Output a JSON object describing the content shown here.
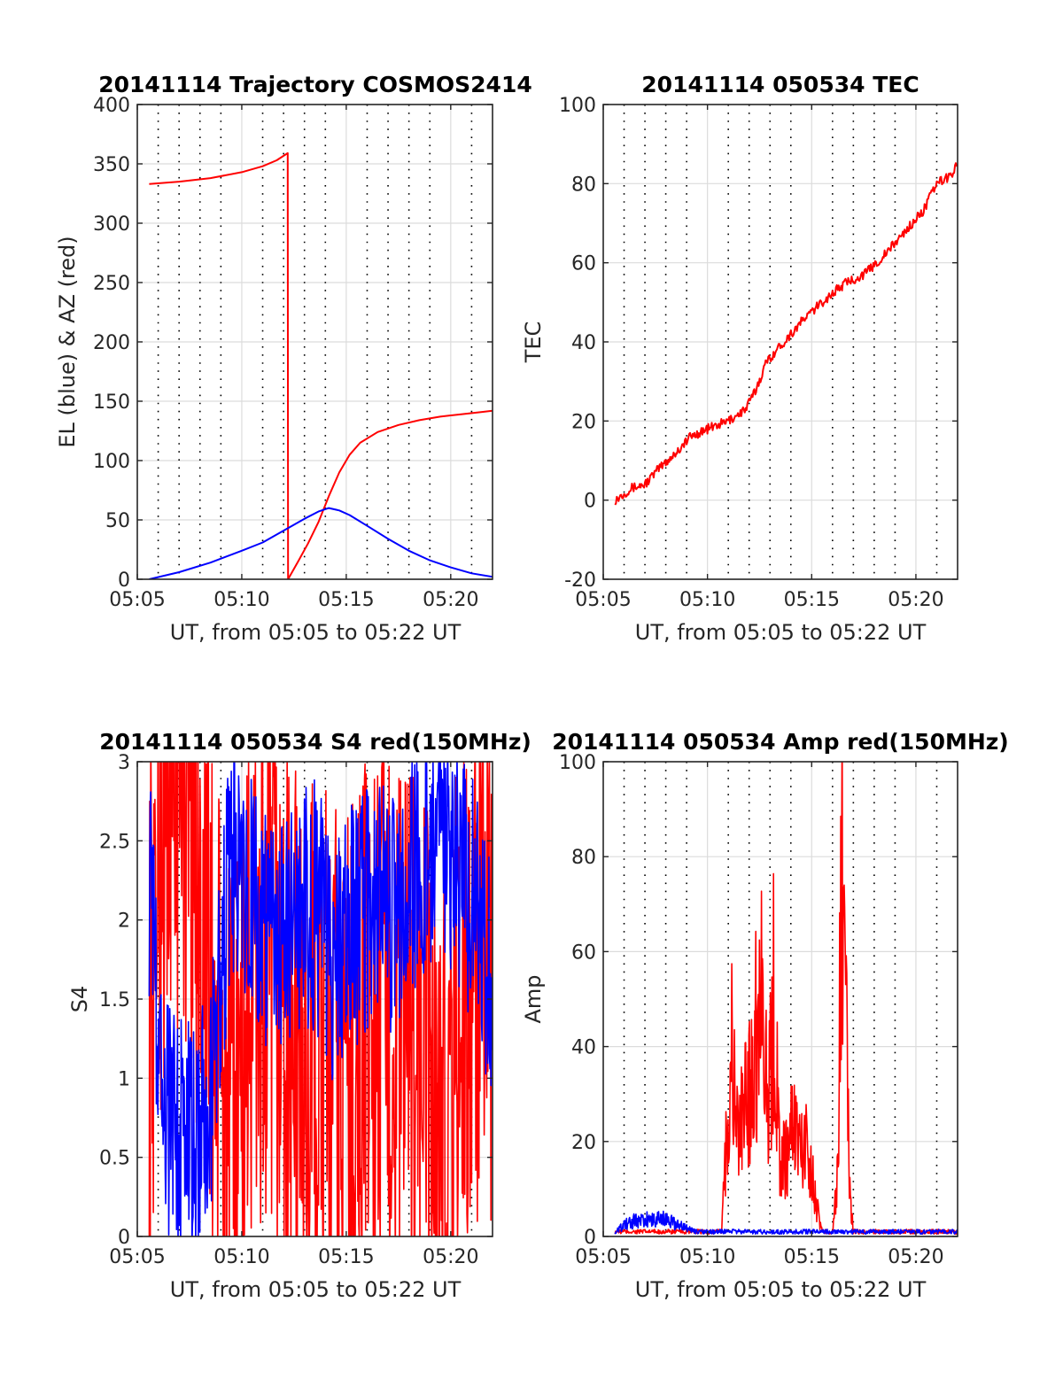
{
  "chart_data": [
    {
      "type": "line",
      "title": "20141114 Trajectory COSMOS2414",
      "xlabel": "UT, from 05:05 to 05:22 UT",
      "ylabel": "EL (blue) & AZ (red)",
      "xlim": [
        "05:05",
        "05:22"
      ],
      "ylim": [
        0,
        400
      ],
      "xticks": [
        "05:05",
        "05:10",
        "05:15",
        "05:20"
      ],
      "yticks": [
        "0",
        "50",
        "100",
        "150",
        "200",
        "250",
        "300",
        "350",
        "400"
      ],
      "grid": true,
      "series": [
        {
          "color": "#ff0000",
          "x": [
            "05:05:34",
            "05:07:00",
            "05:08:30",
            "05:10:00",
            "05:11:00",
            "05:11:40",
            "05:12:12",
            "05:12:13",
            "05:12:40",
            "05:13:10",
            "05:13:40",
            "05:14:10",
            "05:14:40",
            "05:15:10",
            "05:15:40",
            "05:16:30",
            "05:17:30",
            "05:18:30",
            "05:19:30",
            "05:20:30",
            "05:21:30",
            "05:22:00"
          ],
          "values": [
            333,
            335,
            338,
            343,
            348,
            353,
            359,
            0,
            14,
            30,
            48,
            70,
            90,
            105,
            115,
            124,
            130,
            134,
            137,
            139,
            141,
            142
          ]
        },
        {
          "color": "#0000ff",
          "x": [
            "05:05:34",
            "05:07:00",
            "05:08:30",
            "05:10:00",
            "05:11:00",
            "05:12:00",
            "05:13:00",
            "05:13:40",
            "05:14:10",
            "05:14:40",
            "05:15:10",
            "05:16:00",
            "05:17:00",
            "05:18:00",
            "05:19:00",
            "05:20:00",
            "05:21:00",
            "05:22:00"
          ],
          "values": [
            0,
            6,
            14,
            24,
            31,
            41,
            51,
            57,
            60,
            58,
            54,
            45,
            34,
            24,
            16,
            10,
            5,
            2
          ]
        }
      ]
    },
    {
      "type": "line",
      "title": "20141114 050534 TEC",
      "xlabel": "UT, from 05:05 to 05:22 UT",
      "ylabel": "TEC",
      "xlim": [
        "05:05",
        "05:22"
      ],
      "ylim": [
        -20,
        100
      ],
      "xticks": [
        "05:05",
        "05:10",
        "05:15",
        "05:20"
      ],
      "yticks": [
        "-20",
        "0",
        "20",
        "40",
        "60",
        "80",
        "100"
      ],
      "grid": true,
      "series": [
        {
          "color": "#ff0000",
          "x": [
            "05:05:34",
            "05:06:20",
            "05:07:00",
            "05:07:40",
            "05:08:30",
            "05:09:10",
            "05:10:00",
            "05:11:00",
            "05:11:50",
            "05:12:20",
            "05:12:50",
            "05:13:30",
            "05:14:00",
            "05:14:40",
            "05:15:30",
            "05:16:10",
            "05:16:40",
            "05:17:30",
            "05:18:20",
            "05:19:20",
            "05:20:20",
            "05:21:00",
            "05:21:40",
            "05:22:00"
          ],
          "values": [
            0,
            3,
            4,
            8,
            12,
            16,
            18,
            20,
            23,
            28,
            35,
            39,
            42,
            46,
            50,
            53,
            55,
            57,
            61,
            67,
            73,
            80,
            82,
            85
          ]
        }
      ]
    },
    {
      "type": "line",
      "title": "20141114 050534 S4 red(150MHz)",
      "xlabel": "UT, from 05:05 to 05:22 UT",
      "ylabel": "S4",
      "xlim": [
        "05:05",
        "05:22"
      ],
      "ylim": [
        0,
        3
      ],
      "xticks": [
        "05:05",
        "05:10",
        "05:15",
        "05:20"
      ],
      "yticks": [
        "0",
        "0.5",
        "1",
        "1.5",
        "2",
        "2.5",
        "3"
      ],
      "grid": true,
      "series": [
        {
          "color": "#ff0000",
          "x": [
            "05:05:34",
            "05:06:30",
            "05:07:30",
            "05:08:30",
            "05:09:30",
            "05:10:30",
            "05:11:30",
            "05:12:30",
            "05:13:30",
            "05:14:30",
            "05:15:30",
            "05:16:30",
            "05:17:30",
            "05:18:30",
            "05:19:30",
            "05:20:30",
            "05:21:30",
            "05:22:00"
          ],
          "values": [
            1.5,
            3.0,
            3.0,
            1.5,
            0.5,
            1.6,
            1.6,
            1.2,
            1.1,
            1.0,
            1.3,
            1.4,
            1.3,
            1.3,
            0.6,
            1.5,
            1.6,
            1.5
          ]
        },
        {
          "color": "#0000ff",
          "x": [
            "05:05:34",
            "05:06:20",
            "05:07:00",
            "05:07:40",
            "05:08:30",
            "05:09:30",
            "05:10:30",
            "05:11:30",
            "05:12:30",
            "05:13:30",
            "05:14:30",
            "05:15:30",
            "05:16:30",
            "05:17:30",
            "05:18:30",
            "05:19:30",
            "05:20:30",
            "05:21:30",
            "05:22:00"
          ],
          "values": [
            2.3,
            0.7,
            0.6,
            0.65,
            0.75,
            2.5,
            2.2,
            1.8,
            2.0,
            2.1,
            1.7,
            2.0,
            2.2,
            1.9,
            2.4,
            2.6,
            2.3,
            2.0,
            1.5
          ]
        }
      ]
    },
    {
      "type": "line",
      "title": "20141114 050534 Amp red(150MHz)",
      "xlabel": "UT, from 05:05 to 05:22 UT",
      "ylabel": "Amp",
      "xlim": [
        "05:05",
        "05:22"
      ],
      "ylim": [
        0,
        100
      ],
      "xticks": [
        "05:05",
        "05:10",
        "05:15",
        "05:20"
      ],
      "yticks": [
        "0",
        "20",
        "40",
        "60",
        "80",
        "100"
      ],
      "grid": true,
      "series": [
        {
          "color": "#ff0000",
          "x": [
            "05:05:34",
            "05:10:40",
            "05:10:50",
            "05:11:10",
            "05:11:30",
            "05:11:50",
            "05:12:10",
            "05:12:40",
            "05:12:55",
            "05:13:10",
            "05:13:30",
            "05:13:50",
            "05:14:10",
            "05:14:30",
            "05:14:50",
            "05:15:10",
            "05:15:30",
            "05:16:00",
            "05:16:15",
            "05:16:25",
            "05:16:35",
            "05:16:50",
            "05:17:00",
            "05:22:00"
          ],
          "values": [
            1,
            1,
            19,
            47,
            25,
            35,
            45,
            72,
            30,
            62,
            18,
            22,
            31,
            22,
            26,
            10,
            1,
            1,
            15,
            96,
            67,
            12,
            1,
            1
          ]
        },
        {
          "color": "#0000ff",
          "x": [
            "05:05:34",
            "05:06:10",
            "05:07:00",
            "05:07:50",
            "05:08:30",
            "05:09:30",
            "05:12:00",
            "05:15:00",
            "05:18:00",
            "05:22:00"
          ],
          "values": [
            1,
            3,
            3.5,
            4,
            2.5,
            1,
            1,
            1,
            1,
            1
          ]
        }
      ]
    }
  ]
}
